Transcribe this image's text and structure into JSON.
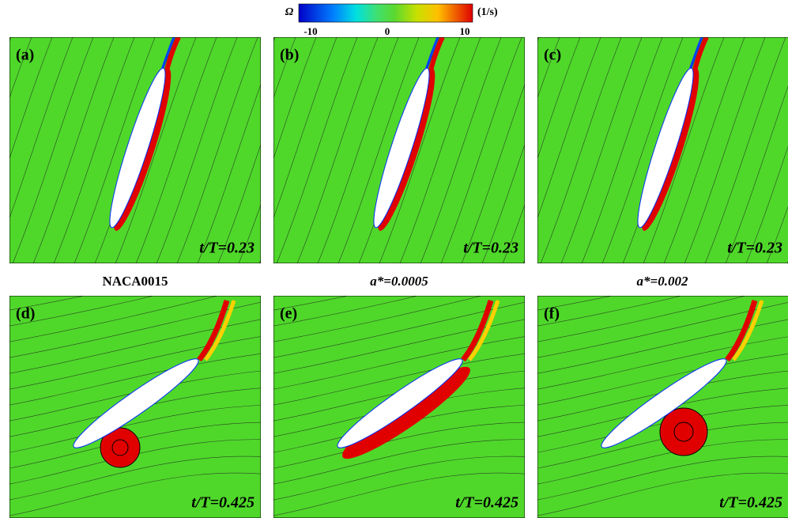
{
  "colorbar": {
    "symbol": "Ω",
    "unit": "(1/s)",
    "ticks": [
      -10,
      0,
      10
    ]
  },
  "panels": [
    {
      "label": "(a)",
      "time": "t/T=0.23"
    },
    {
      "label": "(b)",
      "time": "t/T=0.23"
    },
    {
      "label": "(c)",
      "time": "t/T=0.23"
    },
    {
      "label": "(d)",
      "time": "t/T=0.425"
    },
    {
      "label": "(e)",
      "time": "t/T=0.425"
    },
    {
      "label": "(f)",
      "time": "t/T=0.425"
    }
  ],
  "column_labels": [
    "NACA0015",
    "a*=0.0005",
    "a*=0.002"
  ]
}
